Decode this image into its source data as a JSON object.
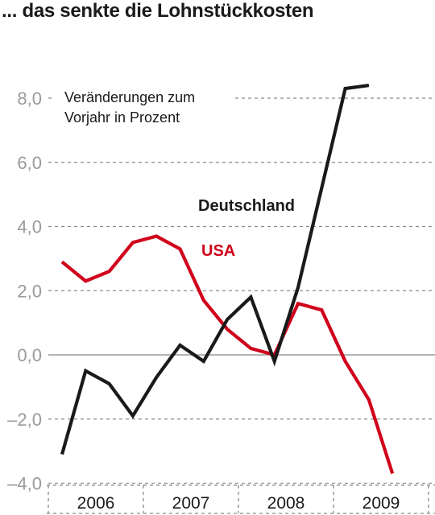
{
  "title": "... das senkte die Lohnstückkosten",
  "chart_data": {
    "type": "line",
    "annotation": [
      "Veränderungen zum",
      "Vorjahr in Prozent"
    ],
    "y_ticks": [
      "8,0",
      "6,0",
      "4,0",
      "2,0",
      "0,0",
      "–2,0",
      "–4,0"
    ],
    "y_tick_values": [
      8,
      6,
      4,
      2,
      0,
      -2,
      -4
    ],
    "ylim": [
      -4,
      8.6
    ],
    "years": [
      "2006",
      "2007",
      "2008",
      "2009"
    ],
    "x_quarters": [
      "2006-Q1",
      "2006-Q2",
      "2006-Q3",
      "2006-Q4",
      "2007-Q1",
      "2007-Q2",
      "2007-Q3",
      "2007-Q4",
      "2008-Q1",
      "2008-Q2",
      "2008-Q3",
      "2008-Q4",
      "2009-Q1",
      "2009-Q2",
      "2009-Q3"
    ],
    "series": [
      {
        "name": "Deutschland",
        "color": "#1a1a1a",
        "values": [
          -3.1,
          -0.5,
          -0.9,
          -1.9,
          -0.7,
          0.3,
          -0.2,
          1.1,
          1.8,
          -0.2,
          2.1,
          5.2,
          8.3,
          8.4,
          null
        ]
      },
      {
        "name": "USA",
        "color": "#d0021b",
        "values": [
          2.9,
          2.3,
          2.6,
          3.5,
          3.7,
          3.3,
          1.7,
          0.8,
          0.2,
          0.0,
          1.6,
          1.4,
          -0.2,
          -1.4,
          -3.7
        ]
      }
    ],
    "grid": true
  }
}
